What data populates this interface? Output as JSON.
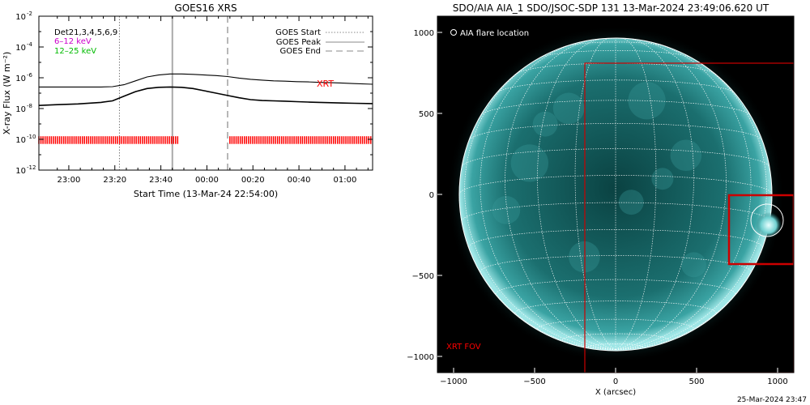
{
  "footer_timestamp": "25-Mar-2024 23:47",
  "colors": {
    "goes_black": "#000000",
    "legend_magenta": "#cc00cc",
    "legend_green": "#00cc00",
    "xrt": "#ff0000",
    "vline_peak": "#999999",
    "aia_disk": "#0f5a5a",
    "grid": "#ffffff"
  },
  "chart_data": [
    {
      "type": "line",
      "title": "GOES16 XRS",
      "xlabel": "Start Time (13-Mar-24 22:54:00)",
      "ylabel": "X-ray Flux (W m⁻²)",
      "xlim_minutes_after_start": [
        -7,
        138
      ],
      "ylog": true,
      "ylim": [
        "1e-12",
        "1e-2"
      ],
      "x_ticks": [
        "23:00",
        "23:20",
        "23:40",
        "00:00",
        "00:20",
        "00:40",
        "01:00"
      ],
      "x_tick_minutes": [
        6,
        26,
        46,
        66,
        86,
        106,
        126
      ],
      "y_tick_labels": [
        {
          "base": "10",
          "exp": "-2"
        },
        {
          "base": "10",
          "exp": "-4"
        },
        {
          "base": "10",
          "exp": "-6"
        },
        {
          "base": "10",
          "exp": "-8"
        },
        {
          "base": "10",
          "exp": "-10"
        },
        {
          "base": "10",
          "exp": "-12"
        }
      ],
      "y_tick_exponents": [
        -2,
        -4,
        -6,
        -8,
        -10,
        -12
      ],
      "legend_left": {
        "title": "Det21,3,4,5,6,9",
        "items": [
          "6–12 keV",
          "12–25 keV"
        ]
      },
      "legend_right": [
        "GOES Start",
        "GOES Peak",
        "GOES End"
      ],
      "xrt_label": "XRT",
      "events": {
        "start_min": 28,
        "peak_min": 51,
        "end_min": 75
      },
      "series": [
        {
          "name": "",
          "x_minutes": [
            -7,
            0,
            10,
            20,
            25,
            30,
            35,
            40,
            45,
            50,
            55,
            60,
            65,
            70,
            75,
            80,
            85,
            90,
            95,
            100,
            105,
            110,
            115,
            120,
            125,
            130,
            138
          ],
          "log10_flux": [
            -6.6,
            -6.6,
            -6.6,
            -6.6,
            -6.58,
            -6.45,
            -6.2,
            -5.95,
            -5.82,
            -5.75,
            -5.75,
            -5.78,
            -5.82,
            -5.86,
            -5.92,
            -6.02,
            -6.1,
            -6.15,
            -6.2,
            -6.22,
            -6.25,
            -6.27,
            -6.3,
            -6.32,
            -6.35,
            -6.38,
            -6.42
          ]
        },
        {
          "name": "",
          "x_minutes": [
            -7,
            0,
            10,
            20,
            25,
            30,
            35,
            40,
            45,
            50,
            55,
            60,
            65,
            70,
            75,
            80,
            85,
            90,
            95,
            100,
            105,
            110,
            115,
            120,
            125,
            130,
            138
          ],
          "log10_flux": [
            -7.8,
            -7.75,
            -7.7,
            -7.6,
            -7.5,
            -7.2,
            -6.9,
            -6.7,
            -6.62,
            -6.6,
            -6.62,
            -6.7,
            -6.85,
            -7.0,
            -7.15,
            -7.3,
            -7.42,
            -7.48,
            -7.5,
            -7.52,
            -7.55,
            -7.58,
            -7.6,
            -7.62,
            -7.64,
            -7.66,
            -7.68
          ]
        }
      ],
      "xrt_coverage_minutes": [
        [
          -7,
          54
        ],
        [
          76,
          138
        ]
      ]
    },
    {
      "type": "image",
      "title": "SDO/AIA AIA_1 SDO/JSOC-SDP 131 13-Mar-2024 23:49:06.620 UT",
      "xlabel": "X (arcsec)",
      "xlim": [
        -1100,
        1100
      ],
      "ylim": [
        -1100,
        1100
      ],
      "x_ticks": [
        "−1000",
        "−500",
        "0",
        "500",
        "1000"
      ],
      "x_tick_values": [
        -1000,
        -500,
        0,
        500,
        1000
      ],
      "y_ticks": [
        "1000",
        "500",
        "0",
        "−500",
        "−1000"
      ],
      "y_tick_values": [
        1000,
        500,
        0,
        -500,
        -1000
      ],
      "legend_label": "AIA flare location",
      "fov_label": "XRT FOV",
      "solar_radius_arcsec": 965,
      "xrt_fov_box": {
        "x0": -190,
        "x1": 1100,
        "y0": -1100,
        "y1": 810
      },
      "flare_box": {
        "x0": 700,
        "x1": 1100,
        "y0": -430,
        "y1": -5
      },
      "flare_circle": {
        "x": 935,
        "y": -160,
        "r": 100
      }
    }
  ]
}
